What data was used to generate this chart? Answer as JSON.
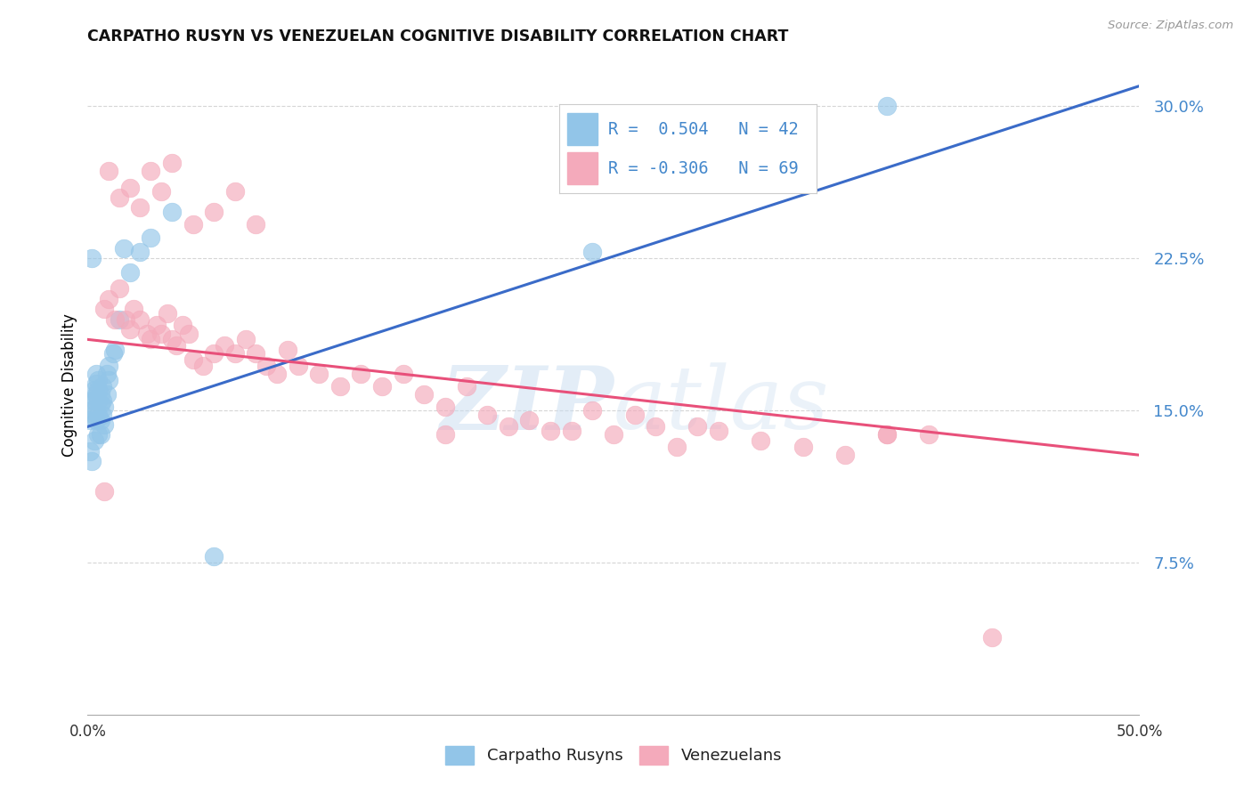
{
  "title": "CARPATHO RUSYN VS VENEZUELAN COGNITIVE DISABILITY CORRELATION CHART",
  "source": "Source: ZipAtlas.com",
  "ylabel": "Cognitive Disability",
  "x_tick_labels": [
    "0.0%",
    "",
    "",
    "",
    "",
    "50.0%"
  ],
  "x_tick_pos": [
    0.0,
    0.1,
    0.2,
    0.3,
    0.4,
    0.5
  ],
  "y_ticks": [
    0.075,
    0.15,
    0.225,
    0.3
  ],
  "y_tick_labels": [
    "7.5%",
    "15.0%",
    "22.5%",
    "30.0%"
  ],
  "xlim": [
    0.0,
    0.5
  ],
  "ylim": [
    0.0,
    0.325
  ],
  "legend_label1": "Carpatho Rusyns",
  "legend_label2": "Venezuelans",
  "blue_color": "#92C5E8",
  "pink_color": "#F4AABB",
  "blue_line_color": "#3A6BC8",
  "pink_line_color": "#E8507A",
  "watermark_zip": "ZIP",
  "watermark_atlas": "atlas",
  "blue_scatter_x": [
    0.001,
    0.001,
    0.002,
    0.002,
    0.002,
    0.003,
    0.003,
    0.003,
    0.003,
    0.004,
    0.004,
    0.004,
    0.004,
    0.005,
    0.005,
    0.005,
    0.005,
    0.005,
    0.006,
    0.006,
    0.006,
    0.006,
    0.007,
    0.007,
    0.007,
    0.008,
    0.008,
    0.009,
    0.009,
    0.01,
    0.01,
    0.012,
    0.013,
    0.015,
    0.017,
    0.02,
    0.025,
    0.03,
    0.04,
    0.06,
    0.002,
    0.38,
    0.24
  ],
  "blue_scatter_y": [
    0.13,
    0.145,
    0.15,
    0.155,
    0.125,
    0.16,
    0.155,
    0.148,
    0.135,
    0.163,
    0.168,
    0.158,
    0.145,
    0.16,
    0.155,
    0.165,
    0.148,
    0.138,
    0.158,
    0.153,
    0.145,
    0.138,
    0.162,
    0.155,
    0.148,
    0.152,
    0.143,
    0.168,
    0.158,
    0.172,
    0.165,
    0.178,
    0.18,
    0.195,
    0.23,
    0.218,
    0.228,
    0.235,
    0.248,
    0.078,
    0.225,
    0.3,
    0.228
  ],
  "pink_scatter_x": [
    0.008,
    0.01,
    0.013,
    0.015,
    0.018,
    0.02,
    0.022,
    0.025,
    0.028,
    0.03,
    0.033,
    0.035,
    0.038,
    0.04,
    0.042,
    0.045,
    0.048,
    0.05,
    0.055,
    0.06,
    0.065,
    0.07,
    0.075,
    0.08,
    0.085,
    0.09,
    0.095,
    0.1,
    0.11,
    0.12,
    0.13,
    0.14,
    0.15,
    0.16,
    0.17,
    0.18,
    0.19,
    0.2,
    0.21,
    0.22,
    0.23,
    0.24,
    0.25,
    0.26,
    0.27,
    0.28,
    0.29,
    0.3,
    0.32,
    0.34,
    0.36,
    0.38,
    0.4,
    0.01,
    0.015,
    0.02,
    0.025,
    0.03,
    0.035,
    0.04,
    0.05,
    0.06,
    0.07,
    0.08,
    0.008,
    0.17,
    0.38,
    0.43
  ],
  "pink_scatter_y": [
    0.2,
    0.205,
    0.195,
    0.21,
    0.195,
    0.19,
    0.2,
    0.195,
    0.188,
    0.185,
    0.192,
    0.188,
    0.198,
    0.185,
    0.182,
    0.192,
    0.188,
    0.175,
    0.172,
    0.178,
    0.182,
    0.178,
    0.185,
    0.178,
    0.172,
    0.168,
    0.18,
    0.172,
    0.168,
    0.162,
    0.168,
    0.162,
    0.168,
    0.158,
    0.152,
    0.162,
    0.148,
    0.142,
    0.145,
    0.14,
    0.14,
    0.15,
    0.138,
    0.148,
    0.142,
    0.132,
    0.142,
    0.14,
    0.135,
    0.132,
    0.128,
    0.138,
    0.138,
    0.268,
    0.255,
    0.26,
    0.25,
    0.268,
    0.258,
    0.272,
    0.242,
    0.248,
    0.258,
    0.242,
    0.11,
    0.138,
    0.138,
    0.038
  ],
  "blue_trend_x": [
    0.0,
    0.5
  ],
  "blue_trend_y": [
    0.142,
    0.31
  ],
  "pink_trend_x": [
    0.0,
    0.5
  ],
  "pink_trend_y": [
    0.185,
    0.128
  ]
}
